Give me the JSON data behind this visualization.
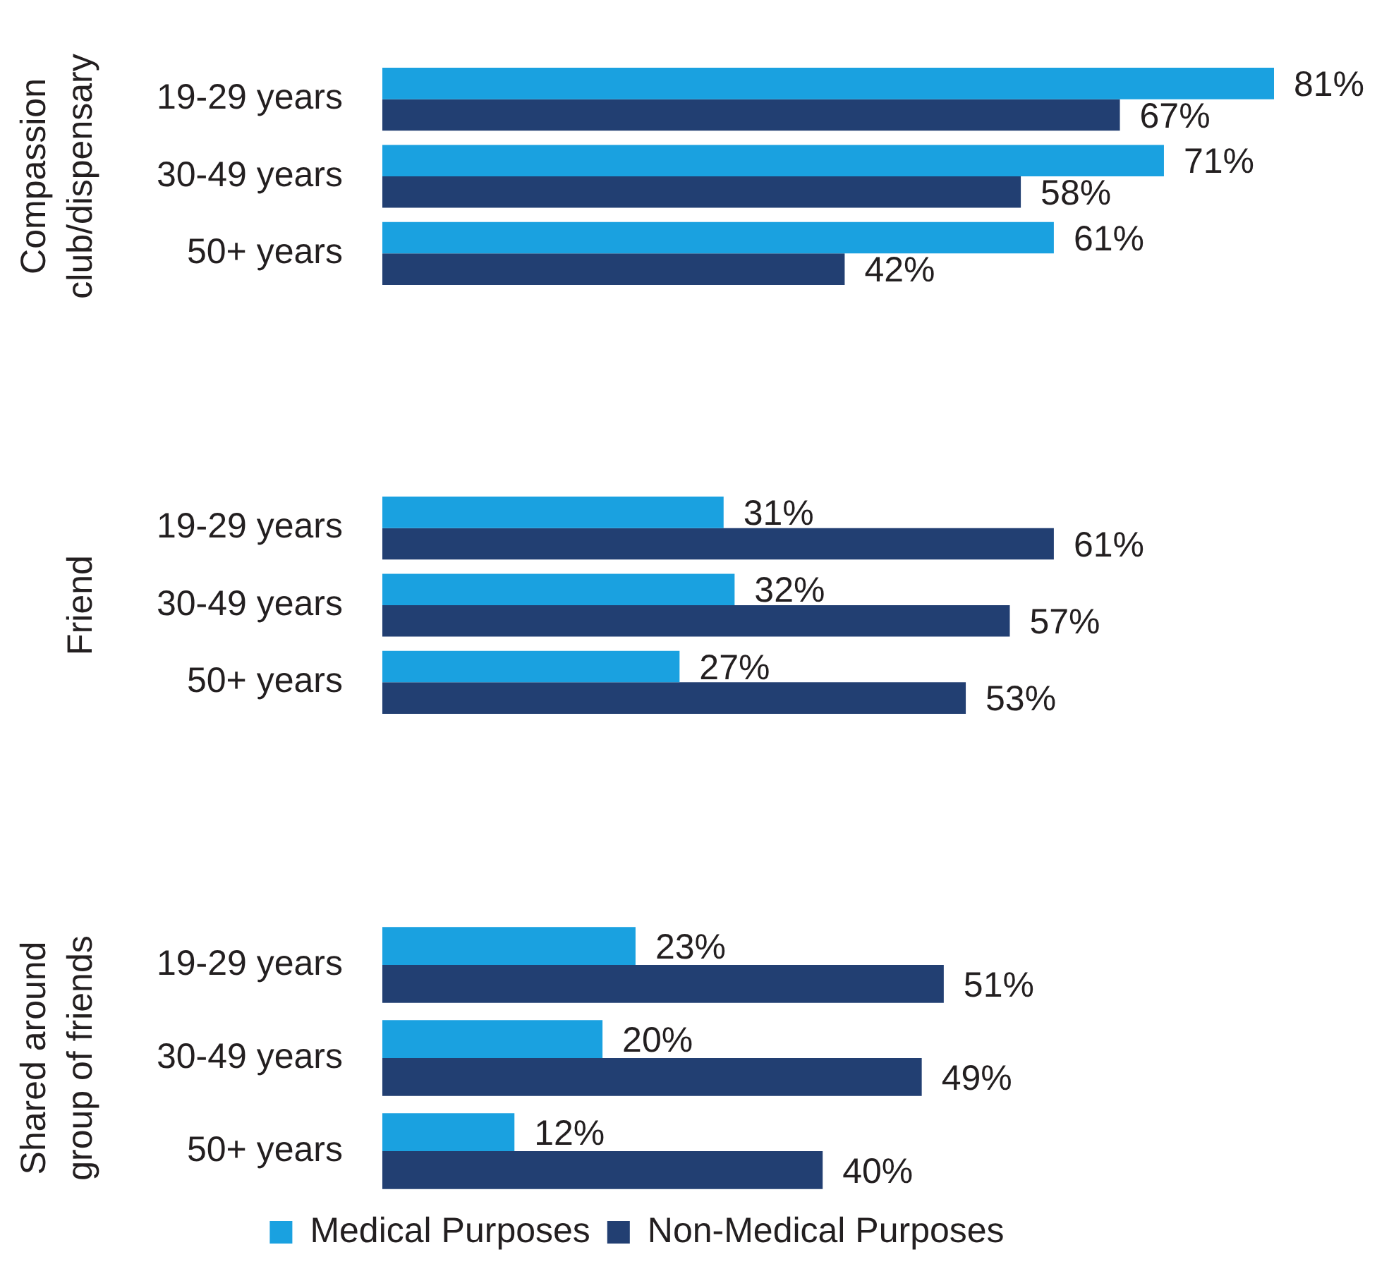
{
  "chart_data": [
    {
      "type": "bar",
      "orientation": "horizontal",
      "ylabel": "Compassion club/dispensary",
      "categories": [
        "19-29 years",
        "30-49 years",
        "50+ years"
      ],
      "tick_labels": "y",
      "series": [
        {
          "color": "#1aa1e0",
          "values": [
            81,
            71,
            61
          ],
          "value_labels": [
            "81%",
            "71%",
            "61%"
          ]
        },
        {
          "color": "#223f72",
          "values": [
            67,
            58,
            42
          ],
          "value_labels": [
            "67%",
            "58%",
            "42%"
          ]
        }
      ]
    },
    {
      "type": "bar",
      "orientation": "horizontal",
      "ylabel": "Friend",
      "categories": [
        "19-29 years",
        "30-49 years",
        "50+ years"
      ],
      "tick_labels": "y",
      "series": [
        {
          "color": "#1aa1e0",
          "values": [
            31,
            32,
            27
          ],
          "value_labels": [
            "31%",
            "32%",
            "27%"
          ]
        },
        {
          "color": "#223f72",
          "values": [
            61,
            57,
            53
          ],
          "value_labels": [
            "61%",
            "57%",
            "53%"
          ]
        }
      ]
    },
    {
      "type": "bar",
      "orientation": "horizontal",
      "ylabel": "Shared around group of friends",
      "categories": [
        "19-29 years",
        "30-49 years",
        "50+ years"
      ],
      "tick_labels": "y",
      "legend": "bottom",
      "series": [
        {
          "name": "Medical Purposes",
          "color": "#1aa1e0",
          "values": [
            23,
            20,
            12
          ],
          "value_labels": [
            "23%",
            "20%",
            "12%"
          ]
        },
        {
          "name": "Non-Medical Purposes",
          "color": "#223f72",
          "values": [
            51,
            49,
            40
          ],
          "value_labels": [
            "51%",
            "49%",
            "40%"
          ]
        }
      ]
    }
  ]
}
